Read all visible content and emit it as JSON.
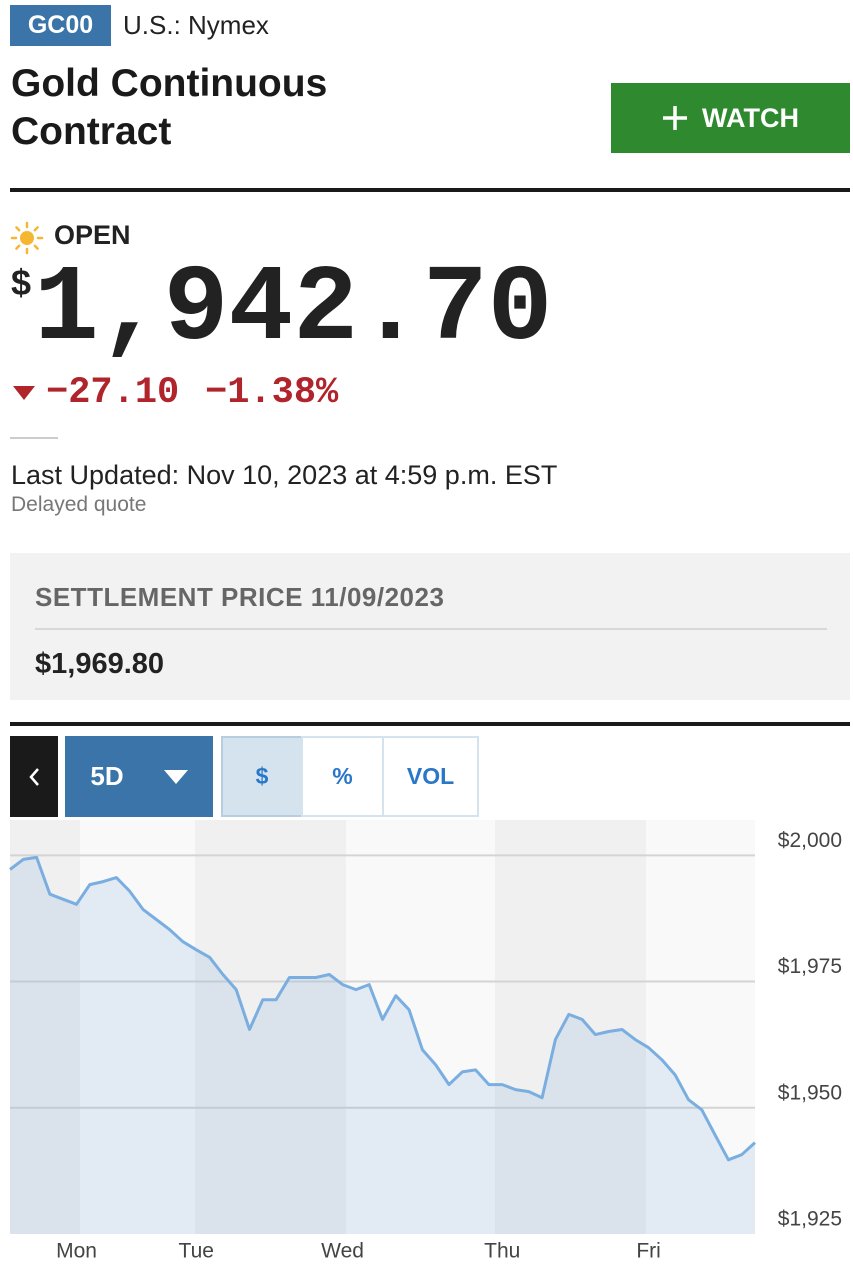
{
  "header": {
    "ticker": "GC00",
    "exchange": "U.S.: Nymex",
    "title": "Gold Continuous Contract",
    "watch_button": "WATCH"
  },
  "quote": {
    "status": "OPEN",
    "currency": "$",
    "price": "1,942.70",
    "change": "−27.10",
    "change_percent": "−1.38%",
    "last_updated": "Last Updated: Nov 10, 2023 at 4:59 p.m. EST",
    "delayed": "Delayed quote"
  },
  "settlement": {
    "label": "SETTLEMENT PRICE 11/09/2023",
    "price": "$1,969.80"
  },
  "controls": {
    "range": "5D",
    "modes": [
      "$",
      "%",
      "VOL"
    ]
  },
  "chart_data": {
    "type": "line",
    "categories": [
      null,
      null,
      null,
      null,
      null,
      "Mon",
      null,
      null,
      null,
      null,
      null,
      null,
      null,
      null,
      "Tue",
      null,
      null,
      null,
      null,
      null,
      null,
      null,
      null,
      null,
      null,
      "Wed",
      null,
      null,
      null,
      null,
      null,
      null,
      null,
      null,
      null,
      null,
      null,
      "Thu",
      null,
      null,
      null,
      null,
      null,
      null,
      null,
      null,
      null,
      null,
      "Fri",
      null,
      null,
      null,
      null,
      null,
      null,
      null,
      null
    ],
    "series": [
      {
        "color": "#7aaee0",
        "values": [
          1997.2,
          1999.2,
          1999.6,
          1992.3,
          1991.3,
          1990.3,
          1994.2,
          1994.8,
          1995.6,
          1992.9,
          1989.3,
          1987.3,
          1985.3,
          1982.9,
          1981.3,
          1979.8,
          1976.4,
          1973.4,
          1965.5,
          1971.4,
          1971.4,
          1975.8,
          1975.8,
          1975.8,
          1976.4,
          1974.4,
          1973.4,
          1974.4,
          1967.5,
          1972.2,
          1969.4,
          1961.5,
          1958.5,
          1954.6,
          1957.1,
          1957.5,
          1954.6,
          1954.6,
          1953.6,
          1953.2,
          1952.0,
          1963.5,
          1968.5,
          1967.5,
          1964.5,
          1965.1,
          1965.5,
          1963.5,
          1961.9,
          1959.5,
          1956.5,
          1951.6,
          1949.6,
          1944.6,
          1939.7,
          1940.7,
          1943.1
        ]
      }
    ],
    "ylim": [
      1925,
      2007
    ],
    "yticks": [
      {
        "value": 1925,
        "label": "$1,925"
      },
      {
        "value": 1950,
        "label": "$1,950"
      },
      {
        "value": 1975,
        "label": "$1,975"
      },
      {
        "value": 2000,
        "label": "$2,000"
      }
    ],
    "grid": true
  }
}
